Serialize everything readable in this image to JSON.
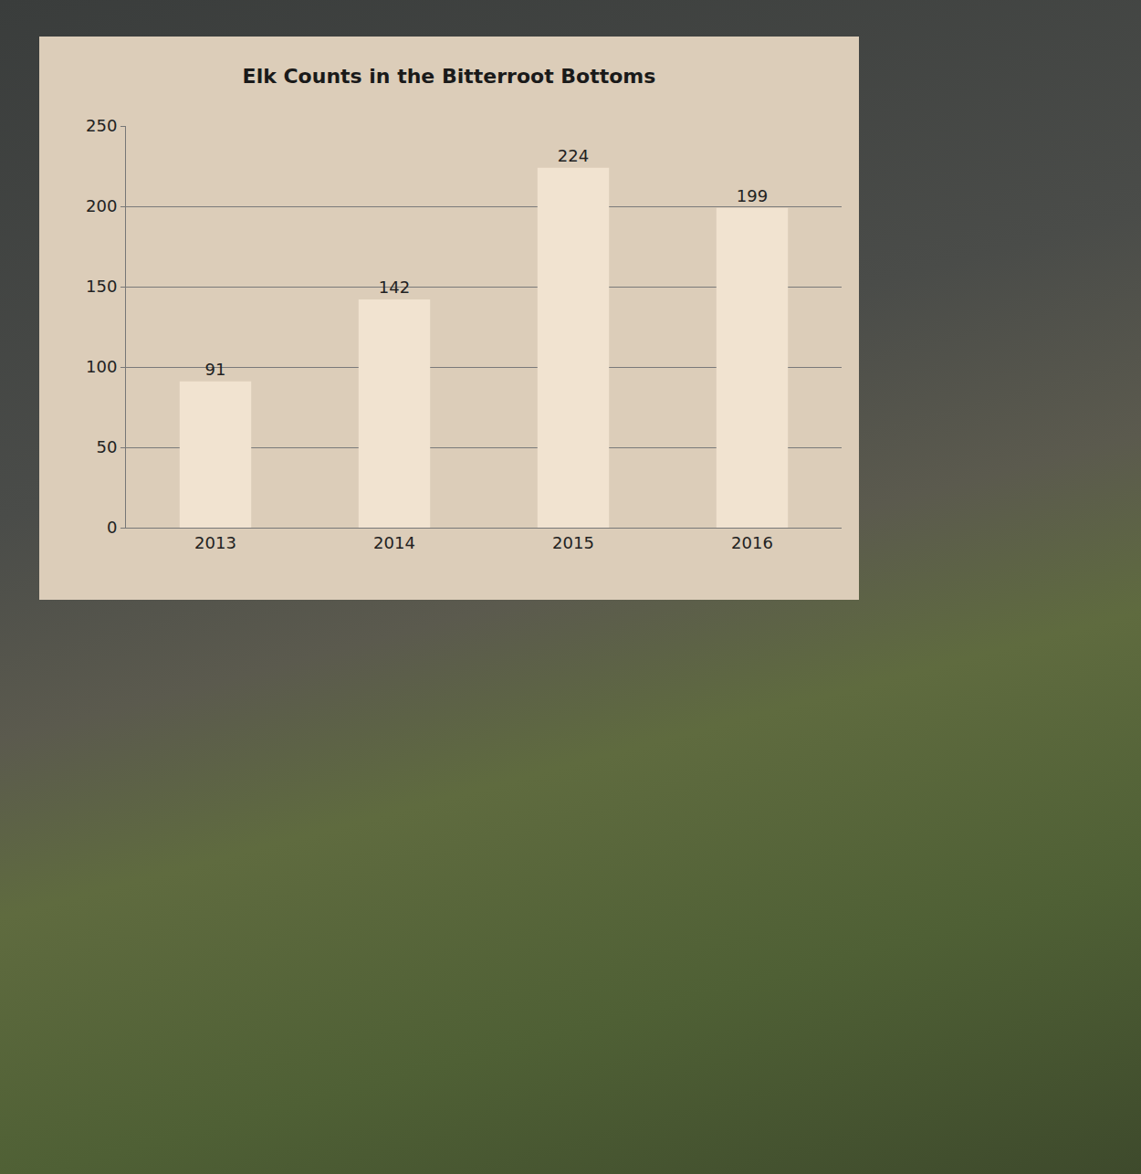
{
  "chart_data": {
    "type": "bar",
    "title": "Elk Counts in the Bitterroot Bottoms",
    "categories": [
      "2013",
      "2014",
      "2015",
      "2016"
    ],
    "values": [
      91,
      142,
      224,
      199
    ],
    "color": "#f1e3d0",
    "ylim": [
      0,
      250
    ],
    "yticks": [
      0,
      50,
      100,
      150,
      200,
      250
    ],
    "grid": true,
    "data_labels": true
  }
}
